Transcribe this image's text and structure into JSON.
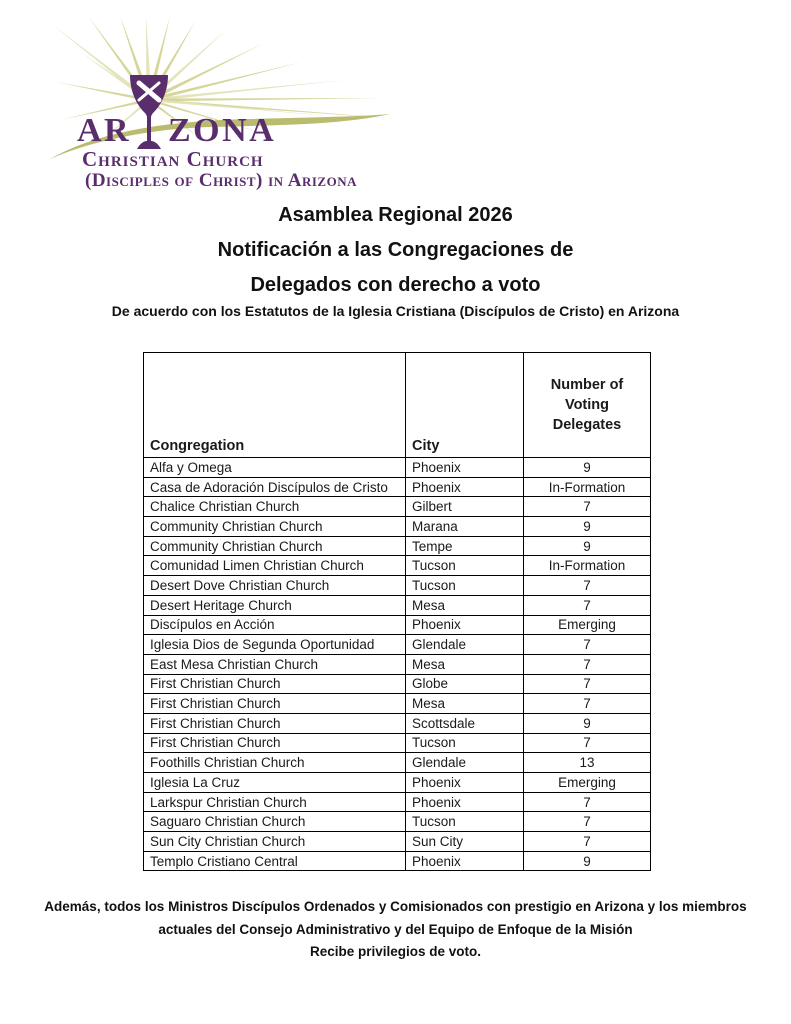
{
  "colors": {
    "purple": "#5a2d6d",
    "olive": "#b9bc6e",
    "ray": "#d6d69c",
    "ray-light": "#e4e4bb",
    "text": "#1a1a1a"
  },
  "logo": {
    "word_start": "AR",
    "word_end": "ZONA",
    "line1": "Christian Church",
    "line2": "(Disciples of Christ) in Arizona",
    "chalice_icon": "chalice-with-cross"
  },
  "titles": [
    "Asamblea Regional 2026",
    "Notificación a las Congregaciones de",
    "Delegados con derecho a voto"
  ],
  "subtitle": "De acuerdo con los Estatutos de la Iglesia Cristiana (Discípulos de Cristo) en Arizona",
  "table": {
    "headers": [
      "Congregation",
      "City",
      "Number of Voting Delegates"
    ],
    "rows": [
      [
        "Alfa y Omega",
        "Phoenix",
        "9"
      ],
      [
        "Casa de Adoración Discípulos de Cristo",
        "Phoenix",
        "In-Formation"
      ],
      [
        "Chalice Christian Church",
        "Gilbert",
        "7"
      ],
      [
        "Community Christian Church",
        "Marana",
        "9"
      ],
      [
        "Community Christian Church",
        "Tempe",
        "9"
      ],
      [
        "Comunidad Limen Christian Church",
        "Tucson",
        "In-Formation"
      ],
      [
        "Desert Dove Christian Church",
        "Tucson",
        "7"
      ],
      [
        "Desert Heritage Church",
        "Mesa",
        "7"
      ],
      [
        "Discípulos en Acción",
        "Phoenix",
        "Emerging"
      ],
      [
        "Iglesia Dios de Segunda Oportunidad",
        "Glendale",
        "7"
      ],
      [
        "East Mesa Christian Church",
        "Mesa",
        "7"
      ],
      [
        "First Christian Church",
        "Globe",
        "7"
      ],
      [
        "First Christian Church",
        "Mesa",
        "7"
      ],
      [
        "First Christian Church",
        "Scottsdale",
        "9"
      ],
      [
        "First Christian Church",
        "Tucson",
        "7"
      ],
      [
        "Foothills Christian Church",
        "Glendale",
        "13"
      ],
      [
        "Iglesia La Cruz",
        "Phoenix",
        "Emerging"
      ],
      [
        "Larkspur Christian Church",
        "Phoenix",
        "7"
      ],
      [
        "Saguaro Christian Church",
        "Tucson",
        "7"
      ],
      [
        "Sun City Christian Church",
        "Sun City",
        "7"
      ],
      [
        "Templo Cristiano Central",
        "Phoenix",
        "9"
      ]
    ]
  },
  "footer": [
    "Además, todos los Ministros Discípulos Ordenados y Comisionados con prestigio en Arizona y los miembros",
    "actuales del Consejo Administrativo y del Equipo de Enfoque de la Misión",
    "Recibe privilegios de voto."
  ]
}
